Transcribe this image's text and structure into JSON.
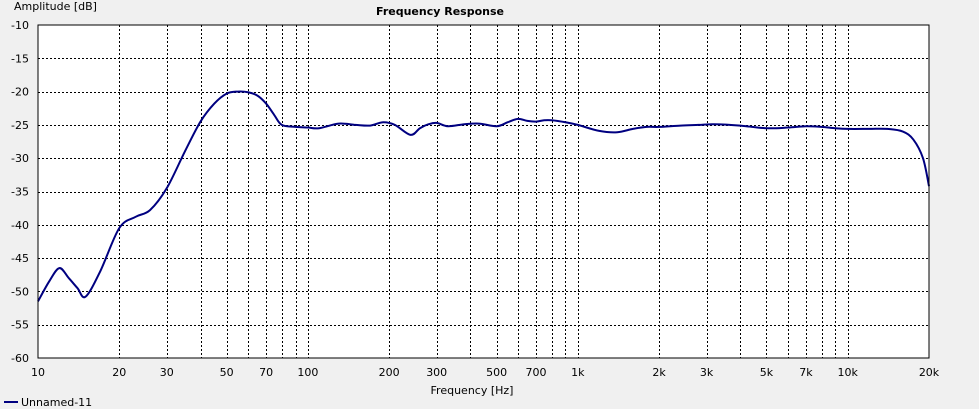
{
  "chart_data": {
    "type": "line",
    "title": "Frequency Response",
    "xlabel": "Frequency [Hz]",
    "ylabel": "Amplitude [dB]",
    "x_scale": "log",
    "xlim": [
      10,
      20000
    ],
    "ylim": [
      -60,
      -10
    ],
    "grid": true,
    "legend_position": "bottom-left",
    "x_ticks": [
      10,
      20,
      30,
      50,
      70,
      100,
      200,
      300,
      500,
      700,
      1000,
      2000,
      3000,
      5000,
      7000,
      10000,
      20000
    ],
    "x_tick_labels": [
      "10",
      "20",
      "30",
      "50",
      "70",
      "100",
      "200",
      "300",
      "500",
      "700",
      "1k",
      "2k",
      "3k",
      "5k",
      "7k",
      "10k",
      "20k"
    ],
    "y_ticks": [
      -10,
      -15,
      -20,
      -25,
      -30,
      -35,
      -40,
      -45,
      -50,
      -55,
      -60
    ],
    "y_tick_labels": [
      "-10",
      "-15",
      "-20",
      "-25",
      "-30",
      "-35",
      "-40",
      "-45",
      "-50",
      "-55",
      "-60"
    ],
    "series": [
      {
        "name": "Unnamed-11",
        "color": "#000080",
        "x": [
          10,
          11,
          12,
          13,
          14,
          15,
          17,
          20,
          23,
          26,
          30,
          35,
          40,
          45,
          50,
          55,
          60,
          65,
          70,
          75,
          80,
          90,
          100,
          110,
          130,
          150,
          170,
          190,
          210,
          240,
          260,
          280,
          300,
          330,
          380,
          430,
          500,
          550,
          600,
          650,
          700,
          750,
          800,
          900,
          1000,
          1200,
          1400,
          1600,
          1800,
          2000,
          2400,
          2800,
          3200,
          4000,
          5000,
          6000,
          7000,
          8000,
          9000,
          10000,
          12000,
          14000,
          16000,
          17500,
          19000,
          20000
        ],
        "y": [
          -51.5,
          -48.5,
          -46.5,
          -48.0,
          -49.5,
          -50.8,
          -47.0,
          -40.5,
          -38.8,
          -37.8,
          -34.5,
          -29.0,
          -24.5,
          -21.8,
          -20.3,
          -20.0,
          -20.1,
          -20.6,
          -21.8,
          -23.5,
          -25.0,
          -25.3,
          -25.4,
          -25.5,
          -24.8,
          -25.0,
          -25.1,
          -24.6,
          -25.0,
          -26.5,
          -25.5,
          -24.9,
          -24.7,
          -25.2,
          -24.9,
          -24.8,
          -25.2,
          -24.6,
          -24.1,
          -24.4,
          -24.5,
          -24.3,
          -24.3,
          -24.6,
          -25.0,
          -25.9,
          -26.1,
          -25.6,
          -25.3,
          -25.3,
          -25.1,
          -25.0,
          -24.9,
          -25.1,
          -25.5,
          -25.4,
          -25.2,
          -25.3,
          -25.5,
          -25.6,
          -25.6,
          -25.6,
          -26.0,
          -27.2,
          -30.0,
          -34.2
        ]
      }
    ]
  }
}
